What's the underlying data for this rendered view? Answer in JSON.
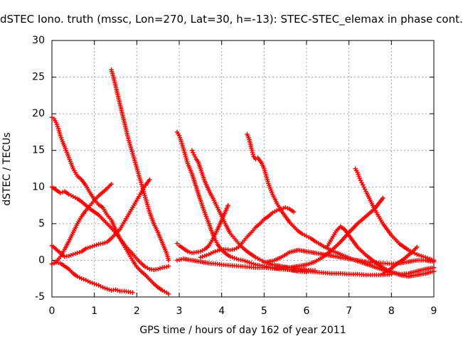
{
  "chart_data": {
    "type": "scatter",
    "title": "dSTEC Iono. truth (mssc, Lon=270, Lat=30, h=-13): STEC-STEC_elemax in phase cont.",
    "xlabel": "GPS time / hours of day 162 of year 2011",
    "ylabel": "dSTEC  / TECUs",
    "xlim": [
      0,
      9
    ],
    "ylim": [
      -5,
      30
    ],
    "x_ticks": [
      0,
      1,
      2,
      3,
      4,
      5,
      6,
      7,
      8,
      9
    ],
    "y_ticks": [
      -5,
      0,
      5,
      10,
      15,
      20,
      25,
      30
    ],
    "x_tick_labels": [
      "0",
      "1",
      "2",
      "3",
      "4",
      "5",
      "6",
      "7",
      "8",
      "9"
    ],
    "y_tick_labels": [
      "-5",
      "0",
      "5",
      "10",
      "15",
      "20",
      "25",
      "30"
    ],
    "grid": true,
    "legend": "none",
    "marker": "plus",
    "color": "#ff0000",
    "series": [
      {
        "x": [
          0.0,
          0.1,
          0.2,
          0.3,
          0.4,
          0.5,
          0.6,
          0.7,
          0.8,
          0.9,
          1.0,
          1.1,
          1.2,
          1.3,
          1.4,
          1.5,
          1.6,
          1.7,
          1.8,
          1.9
        ],
        "y": [
          -0.5,
          -0.3,
          -0.4,
          -0.8,
          -1.2,
          -1.8,
          -2.2,
          -2.5,
          -2.7,
          -3.0,
          -3.2,
          -3.4,
          -3.7,
          -3.9,
          -4.1,
          -4.0,
          -4.2,
          -4.2,
          -4.3,
          -4.4
        ]
      },
      {
        "x": [
          0.0,
          0.05,
          0.1,
          0.15,
          0.2,
          0.25,
          0.3,
          0.4,
          0.5,
          0.6,
          0.7,
          0.8,
          0.9,
          1.0,
          1.1,
          1.2,
          1.3,
          1.4,
          1.5,
          1.6,
          1.7,
          1.8,
          1.9,
          2.0,
          2.1,
          2.2,
          2.3,
          2.4,
          2.5,
          2.6,
          2.7,
          2.75
        ],
        "y": [
          19.5,
          19.3,
          18.8,
          18.0,
          17.0,
          16.2,
          15.5,
          14.0,
          12.5,
          11.5,
          11.0,
          10.2,
          9.2,
          8.3,
          7.6,
          7.2,
          6.2,
          5.5,
          4.2,
          3.0,
          2.0,
          1.0,
          0.0,
          -0.9,
          -1.5,
          -2.0,
          -2.6,
          -3.2,
          -3.7,
          -4.1,
          -4.4,
          -4.6
        ]
      },
      {
        "x": [
          0.0,
          0.1,
          0.2,
          0.3,
          0.4,
          0.5,
          0.6,
          0.7,
          0.8,
          0.9,
          1.0,
          1.1,
          1.2,
          1.3,
          1.4,
          1.5,
          1.6,
          1.7,
          1.8,
          1.9,
          2.0,
          2.1,
          2.2,
          2.3,
          2.4,
          2.5,
          2.6,
          2.7,
          2.75
        ],
        "y": [
          10.0,
          9.6,
          9.2,
          9.4,
          9.0,
          8.7,
          8.4,
          8.0,
          7.5,
          7.0,
          6.6,
          6.2,
          5.6,
          5.0,
          4.4,
          3.8,
          3.0,
          2.2,
          1.5,
          0.9,
          0.2,
          -0.4,
          -0.9,
          -1.2,
          -1.3,
          -1.2,
          -1.0,
          -0.9,
          -0.8
        ]
      },
      {
        "x": [
          0.0,
          0.1,
          0.2,
          0.3,
          0.4,
          0.5,
          0.6,
          0.7,
          0.8,
          0.9,
          1.0,
          1.1,
          1.2,
          1.3,
          1.4
        ],
        "y": [
          -0.5,
          -0.2,
          0.5,
          1.5,
          2.6,
          3.8,
          5.0,
          6.0,
          6.8,
          7.5,
          8.2,
          8.8,
          9.3,
          9.8,
          10.4
        ]
      },
      {
        "x": [
          0.0,
          0.1,
          0.2,
          0.3,
          0.4,
          0.5,
          0.6,
          0.7,
          0.8,
          0.9,
          1.0,
          1.1,
          1.2,
          1.3,
          1.4,
          1.5,
          1.6,
          1.7,
          1.8,
          1.9,
          2.0,
          2.1,
          2.2,
          2.3
        ],
        "y": [
          2.0,
          1.5,
          1.0,
          0.5,
          0.6,
          0.8,
          1.0,
          1.2,
          1.6,
          1.8,
          2.0,
          2.2,
          2.3,
          2.5,
          3.0,
          3.6,
          4.2,
          5.2,
          6.2,
          7.2,
          8.2,
          9.2,
          10.2,
          11.0
        ]
      },
      {
        "x": [
          1.4,
          1.45,
          1.5,
          1.55,
          1.6,
          1.65,
          1.7,
          1.75,
          1.8,
          1.9,
          2.0,
          2.1,
          2.2,
          2.3,
          2.4,
          2.5,
          2.6,
          2.7,
          2.75
        ],
        "y": [
          26.0,
          25.0,
          23.8,
          22.6,
          21.4,
          20.2,
          19.0,
          17.8,
          16.6,
          14.6,
          12.6,
          10.6,
          8.6,
          6.6,
          5.0,
          3.8,
          2.4,
          1.0,
          0.0
        ]
      },
      {
        "x": [
          2.95,
          3.0,
          3.05,
          3.1,
          3.15,
          3.2,
          3.25,
          3.3,
          3.4,
          3.5,
          3.6,
          3.7,
          3.8,
          3.9,
          4.0,
          4.1,
          4.2,
          4.3,
          4.4,
          4.5,
          4.6,
          4.7,
          4.8,
          4.9,
          5.0,
          5.1,
          5.2,
          5.4,
          5.6,
          5.8,
          6.0
        ],
        "y": [
          17.5,
          17.0,
          16.2,
          15.2,
          14.2,
          13.2,
          12.5,
          11.8,
          10.0,
          8.2,
          6.5,
          5.0,
          3.4,
          2.2,
          1.4,
          0.9,
          0.5,
          0.3,
          0.1,
          0.0,
          -0.2,
          -0.4,
          -0.6,
          -0.7,
          -0.8,
          -0.9,
          -1.0,
          -1.2,
          -1.3,
          -1.5,
          -1.6
        ]
      },
      {
        "x": [
          3.3,
          3.35,
          3.4,
          3.45,
          3.5,
          3.6,
          3.7,
          3.8,
          3.9,
          4.0,
          4.1,
          4.2,
          4.3,
          4.4,
          4.5,
          4.6,
          4.7,
          4.8,
          4.9,
          5.0,
          5.2,
          5.4,
          5.6,
          5.8,
          6.0,
          6.2
        ],
        "y": [
          15.0,
          14.4,
          13.8,
          13.4,
          12.5,
          10.8,
          9.5,
          8.4,
          7.2,
          6.0,
          4.8,
          3.7,
          3.0,
          2.3,
          1.7,
          1.2,
          0.8,
          0.4,
          0.1,
          -0.2,
          -0.6,
          -0.8,
          -1.0,
          -1.1,
          -1.3,
          -1.4
        ]
      },
      {
        "x": [
          2.95,
          3.0,
          3.1,
          3.2,
          3.3,
          3.4,
          3.5,
          3.6,
          3.7,
          3.8,
          3.9,
          4.0,
          4.1,
          4.15
        ],
        "y": [
          2.3,
          2.0,
          1.6,
          1.2,
          1.0,
          1.1,
          1.2,
          1.5,
          2.0,
          3.0,
          4.2,
          5.5,
          6.8,
          7.5
        ]
      },
      {
        "x": [
          2.95,
          3.1,
          3.3,
          3.5,
          3.7,
          3.9,
          4.0,
          4.2,
          4.4,
          4.6,
          4.8,
          5.0,
          5.2,
          5.4,
          5.6,
          5.8,
          6.0,
          6.2,
          6.4,
          6.6,
          6.8,
          7.0,
          7.2,
          7.4,
          7.6,
          7.8,
          8.0
        ],
        "y": [
          0.0,
          0.2,
          0.0,
          -0.2,
          -0.4,
          -0.5,
          -0.6,
          -0.7,
          -0.8,
          -0.9,
          -1.0,
          -1.0,
          -1.1,
          -1.2,
          -1.3,
          -1.4,
          -1.5,
          -1.6,
          -1.7,
          -1.8,
          -1.8,
          -1.9,
          -1.9,
          -2.0,
          -2.0,
          -2.0,
          -1.9
        ]
      },
      {
        "x": [
          3.5,
          3.6,
          3.7,
          3.8,
          3.9,
          4.0,
          4.1,
          4.2,
          4.3,
          4.4,
          4.5,
          4.6,
          4.7,
          4.8,
          4.9,
          5.0,
          5.1,
          5.2,
          5.3,
          5.4,
          5.5,
          5.6,
          5.7
        ],
        "y": [
          0.4,
          0.6,
          0.8,
          1.1,
          1.3,
          1.5,
          1.5,
          1.4,
          1.5,
          1.8,
          2.5,
          3.2,
          3.8,
          4.5,
          5.0,
          5.6,
          6.0,
          6.5,
          6.8,
          7.0,
          7.2,
          7.0,
          6.6
        ]
      },
      {
        "x": [
          4.6,
          4.65,
          4.7,
          4.75,
          4.8,
          4.85,
          4.9,
          4.95,
          5.0,
          5.05,
          5.1,
          5.2,
          5.3,
          5.4,
          5.5,
          5.6,
          5.7,
          5.8,
          5.9,
          6.0,
          6.1,
          6.2,
          6.4,
          6.6,
          6.8,
          7.0,
          7.2,
          7.4,
          7.6,
          7.8,
          8.0,
          8.2,
          8.4,
          8.6,
          8.8,
          9.0
        ],
        "y": [
          17.2,
          16.5,
          15.3,
          14.2,
          13.8,
          14.0,
          13.6,
          13.2,
          12.5,
          11.5,
          10.5,
          9.0,
          7.8,
          6.8,
          6.0,
          5.2,
          4.6,
          4.0,
          3.6,
          3.3,
          3.0,
          2.6,
          1.9,
          1.3,
          0.8,
          0.3,
          -0.1,
          -0.5,
          -0.9,
          -1.3,
          -1.6,
          -1.9,
          -1.8,
          -1.5,
          -1.2,
          -1.0
        ]
      },
      {
        "x": [
          5.0,
          5.2,
          5.4,
          5.6,
          5.8,
          6.0,
          6.2,
          6.4,
          6.6,
          6.8,
          7.0,
          7.2,
          7.4,
          7.6,
          7.8,
          8.0,
          8.2,
          8.4,
          8.6,
          8.8,
          9.0
        ],
        "y": [
          -0.3,
          -0.1,
          0.4,
          1.1,
          1.4,
          1.2,
          1.0,
          0.8,
          0.6,
          0.4,
          0.2,
          0.0,
          -0.2,
          -0.3,
          -0.4,
          -0.5,
          -0.4,
          -0.2,
          0.0,
          0.0,
          -0.2
        ]
      },
      {
        "x": [
          5.4,
          5.6,
          5.8,
          6.0,
          6.2,
          6.4,
          6.6,
          6.8,
          7.0,
          7.2,
          7.4,
          7.6,
          7.8
        ],
        "y": [
          -1.0,
          -1.0,
          -0.8,
          -0.6,
          -0.2,
          0.5,
          1.4,
          2.5,
          3.8,
          5.0,
          6.0,
          7.0,
          8.5
        ]
      },
      {
        "x": [
          6.5,
          6.6,
          6.7,
          6.8,
          6.9,
          7.0,
          7.1,
          7.2,
          7.4,
          7.6,
          7.8,
          8.0,
          8.2,
          8.4,
          8.6,
          8.8,
          9.0
        ],
        "y": [
          2.0,
          3.0,
          4.0,
          4.6,
          4.2,
          3.4,
          2.6,
          1.8,
          0.7,
          -0.2,
          -1.0,
          -1.6,
          -2.0,
          -2.2,
          -2.0,
          -1.8,
          -1.5
        ]
      },
      {
        "x": [
          7.15,
          7.2,
          7.25,
          7.3,
          7.35,
          7.4,
          7.5,
          7.6,
          7.7,
          7.8,
          7.9,
          8.0,
          8.1,
          8.2,
          8.3,
          8.4,
          8.5,
          8.6,
          8.7,
          8.8,
          8.9,
          9.0
        ],
        "y": [
          12.5,
          12.0,
          11.2,
          10.6,
          10.0,
          9.4,
          8.2,
          7.0,
          6.0,
          5.0,
          4.2,
          3.4,
          2.8,
          2.2,
          1.8,
          1.4,
          1.1,
          0.8,
          0.6,
          0.4,
          0.2,
          0.0
        ]
      },
      {
        "x": [
          7.8,
          7.9,
          8.0,
          8.1,
          8.2,
          8.3,
          8.4,
          8.5,
          8.6
        ],
        "y": [
          -1.8,
          -1.5,
          -1.1,
          -0.6,
          -0.2,
          0.2,
          0.7,
          1.2,
          1.8
        ]
      }
    ]
  }
}
